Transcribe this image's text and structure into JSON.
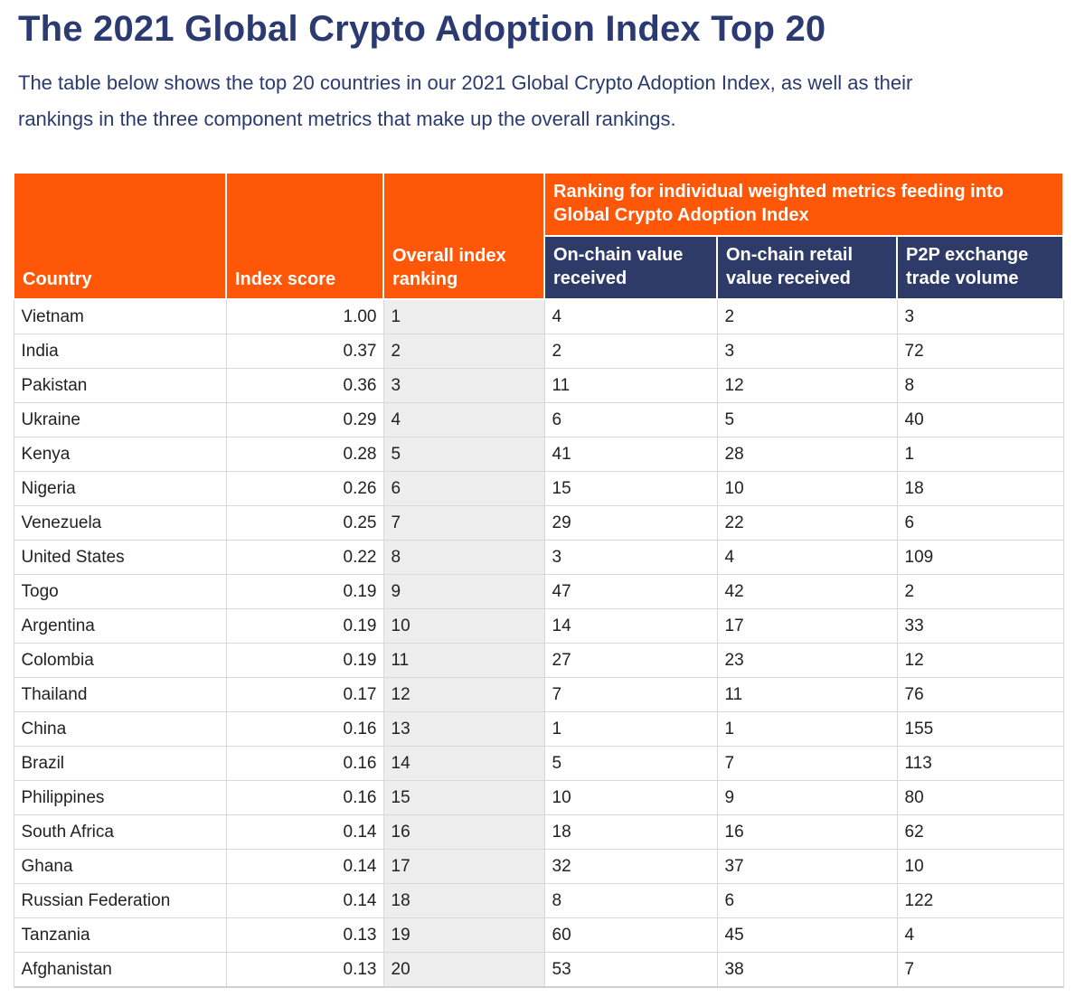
{
  "colors": {
    "orange": "#ff5708",
    "navy": "#2e3a68",
    "ink": "#2b3a70",
    "body-ink": "#222222",
    "grid": "#d8d8d8",
    "shade": "#ededed"
  },
  "article": {
    "title": "The 2021 Global Crypto Adoption Index Top 20",
    "intro": "The table below shows the top 20 countries in our 2021 Global Crypto Adoption Index, as well as their rankings in the three component metrics that make up the overall rankings."
  },
  "table": {
    "headers": {
      "country": "Country",
      "index_score": "Index score",
      "overall_ranking": "Overall index ranking",
      "metrics_banner": "Ranking for individual weighted metrics feeding into Global Crypto Adoption Index",
      "on_chain_value_received": "On-chain value received",
      "on_chain_retail_value_received": "On-chain retail value received",
      "p2p_exchange_trade_volume": "P2P exchange trade volume"
    },
    "rows": [
      {
        "country": "Vietnam",
        "index_score": "1.00",
        "overall_ranking": "1",
        "on_chain_value_received": "4",
        "on_chain_retail_value_received": "2",
        "p2p_exchange_trade_volume": "3"
      },
      {
        "country": "India",
        "index_score": "0.37",
        "overall_ranking": "2",
        "on_chain_value_received": "2",
        "on_chain_retail_value_received": "3",
        "p2p_exchange_trade_volume": "72"
      },
      {
        "country": "Pakistan",
        "index_score": "0.36",
        "overall_ranking": "3",
        "on_chain_value_received": "11",
        "on_chain_retail_value_received": "12",
        "p2p_exchange_trade_volume": "8"
      },
      {
        "country": "Ukraine",
        "index_score": "0.29",
        "overall_ranking": "4",
        "on_chain_value_received": "6",
        "on_chain_retail_value_received": "5",
        "p2p_exchange_trade_volume": "40"
      },
      {
        "country": "Kenya",
        "index_score": "0.28",
        "overall_ranking": "5",
        "on_chain_value_received": "41",
        "on_chain_retail_value_received": "28",
        "p2p_exchange_trade_volume": "1"
      },
      {
        "country": "Nigeria",
        "index_score": "0.26",
        "overall_ranking": "6",
        "on_chain_value_received": "15",
        "on_chain_retail_value_received": "10",
        "p2p_exchange_trade_volume": "18"
      },
      {
        "country": "Venezuela",
        "index_score": "0.25",
        "overall_ranking": "7",
        "on_chain_value_received": "29",
        "on_chain_retail_value_received": "22",
        "p2p_exchange_trade_volume": "6"
      },
      {
        "country": "United States",
        "index_score": "0.22",
        "overall_ranking": "8",
        "on_chain_value_received": "3",
        "on_chain_retail_value_received": "4",
        "p2p_exchange_trade_volume": "109"
      },
      {
        "country": "Togo",
        "index_score": "0.19",
        "overall_ranking": "9",
        "on_chain_value_received": "47",
        "on_chain_retail_value_received": "42",
        "p2p_exchange_trade_volume": "2"
      },
      {
        "country": "Argentina",
        "index_score": "0.19",
        "overall_ranking": "10",
        "on_chain_value_received": "14",
        "on_chain_retail_value_received": "17",
        "p2p_exchange_trade_volume": "33"
      },
      {
        "country": "Colombia",
        "index_score": "0.19",
        "overall_ranking": "11",
        "on_chain_value_received": "27",
        "on_chain_retail_value_received": "23",
        "p2p_exchange_trade_volume": "12"
      },
      {
        "country": "Thailand",
        "index_score": "0.17",
        "overall_ranking": "12",
        "on_chain_value_received": "7",
        "on_chain_retail_value_received": "11",
        "p2p_exchange_trade_volume": "76"
      },
      {
        "country": "China",
        "index_score": "0.16",
        "overall_ranking": "13",
        "on_chain_value_received": "1",
        "on_chain_retail_value_received": "1",
        "p2p_exchange_trade_volume": "155"
      },
      {
        "country": "Brazil",
        "index_score": "0.16",
        "overall_ranking": "14",
        "on_chain_value_received": "5",
        "on_chain_retail_value_received": "7",
        "p2p_exchange_trade_volume": "113"
      },
      {
        "country": "Philippines",
        "index_score": "0.16",
        "overall_ranking": "15",
        "on_chain_value_received": "10",
        "on_chain_retail_value_received": "9",
        "p2p_exchange_trade_volume": "80"
      },
      {
        "country": "South Africa",
        "index_score": "0.14",
        "overall_ranking": "16",
        "on_chain_value_received": "18",
        "on_chain_retail_value_received": "16",
        "p2p_exchange_trade_volume": "62"
      },
      {
        "country": "Ghana",
        "index_score": "0.14",
        "overall_ranking": "17",
        "on_chain_value_received": "32",
        "on_chain_retail_value_received": "37",
        "p2p_exchange_trade_volume": "10"
      },
      {
        "country": "Russian Federation",
        "index_score": "0.14",
        "overall_ranking": "18",
        "on_chain_value_received": "8",
        "on_chain_retail_value_received": "6",
        "p2p_exchange_trade_volume": "122"
      },
      {
        "country": "Tanzania",
        "index_score": "0.13",
        "overall_ranking": "19",
        "on_chain_value_received": "60",
        "on_chain_retail_value_received": "45",
        "p2p_exchange_trade_volume": "4"
      },
      {
        "country": "Afghanistan",
        "index_score": "0.13",
        "overall_ranking": "20",
        "on_chain_value_received": "53",
        "on_chain_retail_value_received": "38",
        "p2p_exchange_trade_volume": "7"
      }
    ]
  }
}
